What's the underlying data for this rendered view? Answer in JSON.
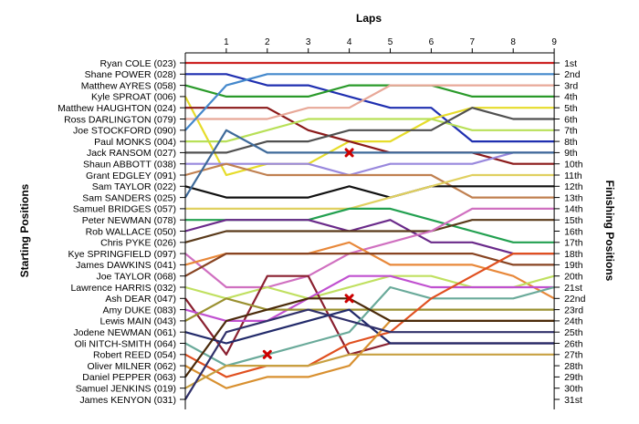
{
  "chart_data": {
    "type": "line",
    "title": "",
    "xlabel": "Laps",
    "ylabel_left": "Starting Positions",
    "ylabel_right": "Finishing Positions",
    "laps": [
      "1",
      "2",
      "3",
      "4",
      "5",
      "6",
      "7",
      "8",
      "9"
    ],
    "starting_labels": [
      "Ryan COLE (023)",
      "Shane POWER (028)",
      "Matthew AYRES (058)",
      "Kyle SPROAT (006)",
      "Matthew HAUGHTON (024)",
      "Ross DARLINGTON (079)",
      "Joe STOCKFORD (090)",
      "Paul MONKS (004)",
      "Jack RANSOM (027)",
      "Shaun ABBOTT (038)",
      "Grant EDGLEY (091)",
      "Sam TAYLOR (022)",
      "Sam SANDERS (025)",
      "Samuel BRIDGES (057)",
      "Peter NEWMAN (078)",
      "Rob WALLACE (050)",
      "Chris PYKE (026)",
      "Kye SPRINGFIELD (097)",
      "James DAWKINS (041)",
      "Joe TAYLOR (068)",
      "Lawrence HARRIS (032)",
      "Ash DEAR (047)",
      "Amy DUKE (083)",
      "Lewis MAIN (043)",
      "Jodene NEWMAN (061)",
      "Oli NITCH-SMITH (064)",
      "Robert REED (054)",
      "Oliver MILNER (062)",
      "Daniel PEPPER (063)",
      "Samuel JENKINS (019)",
      "James KENYON (031)"
    ],
    "finishing_labels": [
      "1st",
      "2nd",
      "3rd",
      "4th",
      "5th",
      "6th",
      "7th",
      "8th",
      "9th",
      "10th",
      "11th",
      "12th",
      "13th",
      "14th",
      "15th",
      "16th",
      "17th",
      "18th",
      "19th",
      "20th",
      "21st",
      "22nd",
      "23rd",
      "24th",
      "25th",
      "26th",
      "27th",
      "28th",
      "29th",
      "30th",
      "31st"
    ],
    "series": [
      {
        "color": "#cc2222",
        "positions": [
          1,
          1,
          1,
          1,
          1,
          1,
          1,
          1,
          1,
          1
        ]
      },
      {
        "color": "#1f2fb0",
        "positions": [
          2,
          2,
          3,
          3,
          4,
          5,
          5,
          8,
          8,
          8
        ]
      },
      {
        "color": "#2a9a2a",
        "positions": [
          3,
          4,
          4,
          4,
          3,
          3,
          3,
          4,
          4,
          4
        ]
      },
      {
        "color": "#e6dc2a",
        "positions": [
          4,
          11,
          10,
          10,
          8,
          8,
          6,
          5,
          5,
          5
        ]
      },
      {
        "color": "#8b1a1a",
        "positions": [
          5,
          5,
          5,
          7,
          8,
          9,
          9,
          9,
          10,
          10
        ]
      },
      {
        "color": "#e8a898",
        "positions": [
          6,
          6,
          6,
          5,
          5,
          3,
          3,
          3,
          3,
          3
        ]
      },
      {
        "color": "#4488cc",
        "positions": [
          7,
          3,
          2,
          2,
          2,
          2,
          2,
          2,
          2,
          2
        ]
      },
      {
        "color": "#b8e058",
        "positions": [
          8,
          8,
          7,
          6,
          6,
          6,
          6,
          7,
          7,
          7
        ]
      },
      {
        "color": "#505050",
        "positions": [
          9,
          9,
          8,
          8,
          7,
          7,
          7,
          5,
          6,
          6
        ]
      },
      {
        "color": "#9988dd",
        "positions": [
          10,
          10,
          10,
          10,
          11,
          10,
          10,
          10,
          9,
          9
        ]
      },
      {
        "color": "#c08050",
        "positions": [
          11,
          10,
          11,
          11,
          11,
          11,
          11,
          13,
          13,
          13
        ]
      },
      {
        "color": "#111111",
        "positions": [
          12,
          13,
          13,
          13,
          12,
          13,
          12,
          12,
          12,
          12
        ]
      },
      {
        "color": "#3e6a9a",
        "positions": [
          13,
          7,
          9,
          9,
          9,
          9,
          9,
          9,
          9,
          9
        ]
      },
      {
        "color": "#e0d060",
        "positions": [
          14,
          14,
          14,
          14,
          14,
          13,
          12,
          11,
          11,
          11
        ]
      },
      {
        "color": "#22a050",
        "positions": [
          15,
          15,
          15,
          15,
          14,
          14,
          15,
          16,
          17,
          17
        ]
      },
      {
        "color": "#6a2a8a",
        "positions": [
          16,
          15,
          15,
          15,
          16,
          15,
          17,
          17,
          18,
          18
        ]
      },
      {
        "color": "#5a3a1a",
        "positions": [
          17,
          16,
          16,
          16,
          16,
          16,
          16,
          15,
          15,
          15
        ]
      },
      {
        "color": "#d070c0",
        "positions": [
          18,
          21,
          21,
          20,
          18,
          17,
          16,
          14,
          14,
          14
        ]
      },
      {
        "color": "#e8883a",
        "positions": [
          19,
          18,
          18,
          18,
          17,
          19,
          19,
          19,
          20,
          22
        ]
      },
      {
        "color": "#884422",
        "positions": [
          20,
          18,
          18,
          18,
          18,
          18,
          18,
          18,
          19,
          19
        ]
      },
      {
        "color": "#c0e060",
        "positions": [
          21,
          22,
          21,
          22,
          21,
          20,
          20,
          21,
          21,
          20
        ]
      },
      {
        "color": "#8a2030",
        "positions": [
          22,
          27,
          20,
          20,
          27,
          26,
          26,
          26,
          26,
          26
        ]
      },
      {
        "color": "#c050d0",
        "positions": [
          23,
          24,
          24,
          22,
          20,
          20,
          21,
          21,
          21,
          21
        ]
      },
      {
        "color": "#9a9030",
        "positions": [
          24,
          22,
          23,
          23,
          23,
          23,
          23,
          23,
          23,
          23
        ]
      },
      {
        "color": "#222a6a",
        "positions": [
          25,
          26,
          25,
          24,
          23,
          26,
          26,
          26,
          26,
          26
        ]
      },
      {
        "color": "#6aaa9a",
        "positions": [
          26,
          28,
          27,
          26,
          25,
          21,
          22,
          22,
          22,
          21
        ]
      },
      {
        "color": "#e05020",
        "positions": [
          27,
          29,
          28,
          28,
          26,
          25,
          22,
          20,
          18,
          18
        ]
      },
      {
        "color": "#d89030",
        "positions": [
          28,
          30,
          29,
          29,
          28,
          24,
          24,
          24,
          24,
          24
        ]
      },
      {
        "color": "#4a2a0a",
        "positions": [
          29,
          24,
          23,
          22,
          22,
          24,
          24,
          24,
          24,
          24
        ]
      },
      {
        "color": "#c8a040",
        "positions": [
          30,
          28,
          28,
          28,
          27,
          27,
          27,
          27,
          27,
          27
        ]
      },
      {
        "color": "#30306a",
        "positions": [
          31,
          25,
          24,
          23,
          24,
          25,
          25,
          25,
          25,
          25
        ]
      }
    ],
    "retired_markers": [
      {
        "lap": 4,
        "position": 9
      },
      {
        "lap": 4,
        "position": 22
      },
      {
        "lap": 2,
        "position": 27
      }
    ],
    "grid": false,
    "legend": "none"
  }
}
